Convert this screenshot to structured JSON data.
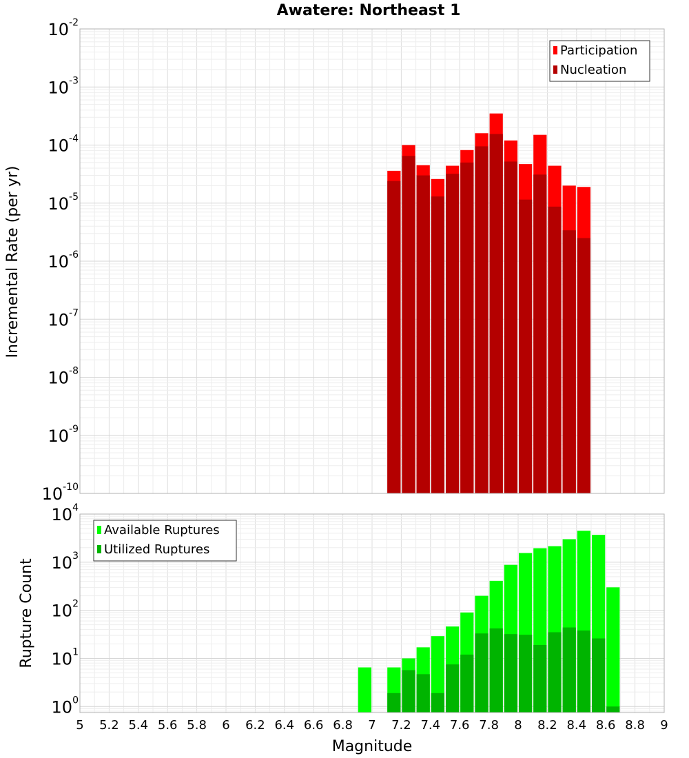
{
  "chart_data": [
    {
      "type": "bar",
      "title": "Awatere: Northeast 1",
      "ylabel": "Incremental Rate (per yr)",
      "xlabel": "",
      "yscale": "log",
      "xlim": [
        5,
        9
      ],
      "ylim": [
        1e-10,
        0.01
      ],
      "y_tick_exponents": [
        -2,
        -3,
        -4,
        -5,
        -6,
        -7,
        -8,
        -9,
        -10
      ],
      "bin_width": 0.1,
      "grid": true,
      "legend_placement": "top-right",
      "x": [
        7.15,
        7.25,
        7.35,
        7.45,
        7.55,
        7.65,
        7.75,
        7.85,
        7.95,
        8.05,
        8.15,
        8.25,
        8.35,
        8.45
      ],
      "series": [
        {
          "name": "Participation",
          "color": "#ff0000",
          "values": [
            3.6e-05,
            0.0001,
            4.5e-05,
            2.6e-05,
            4.4e-05,
            8.2e-05,
            0.00016,
            0.00035,
            0.00012,
            4.7e-05,
            0.00015,
            4.4e-05,
            2e-05,
            1.9e-05
          ]
        },
        {
          "name": "Nucleation",
          "color": "#b40000",
          "values": [
            2.4e-05,
            6.5e-05,
            3e-05,
            1.3e-05,
            3.2e-05,
            5e-05,
            9.5e-05,
            0.000155,
            5.2e-05,
            1.15e-05,
            3.1e-05,
            8.7e-06,
            3.4e-06,
            2.5e-06
          ]
        }
      ]
    },
    {
      "type": "bar",
      "title": "",
      "ylabel": "Rupture Count",
      "xlabel": "Magnitude",
      "yscale": "log",
      "xlim": [
        5,
        9
      ],
      "ylim": [
        0.75,
        10000
      ],
      "y_tick_exponents": [
        4,
        3,
        2,
        1,
        0
      ],
      "x_ticks": [
        "5",
        "5.2",
        "5.4",
        "5.6",
        "5.8",
        "6",
        "6.2",
        "6.4",
        "6.6",
        "6.8",
        "7",
        "7.2",
        "7.4",
        "7.6",
        "7.8",
        "8",
        "8.2",
        "8.4",
        "8.6",
        "8.8",
        "9"
      ],
      "bin_width": 0.1,
      "grid": true,
      "legend_placement": "top-left",
      "x": [
        6.95,
        7.05,
        7.15,
        7.25,
        7.35,
        7.45,
        7.55,
        7.65,
        7.75,
        7.85,
        7.95,
        8.05,
        8.15,
        8.25,
        8.35,
        8.45,
        8.55,
        8.65
      ],
      "series": [
        {
          "name": "Available Ruptures",
          "color": "#00ff00",
          "values": [
            6.5,
            0,
            6.5,
            10,
            17,
            29,
            46,
            90,
            200,
            410,
            880,
            1550,
            1950,
            2150,
            3000,
            4500,
            3700,
            300
          ]
        },
        {
          "name": "Utilized Ruptures",
          "color": "#00b400",
          "values": [
            0,
            0,
            1.9,
            5.7,
            4.7,
            1.9,
            7.5,
            12,
            33,
            42,
            32,
            31,
            19,
            35,
            44,
            38,
            26,
            1
          ]
        }
      ]
    }
  ]
}
